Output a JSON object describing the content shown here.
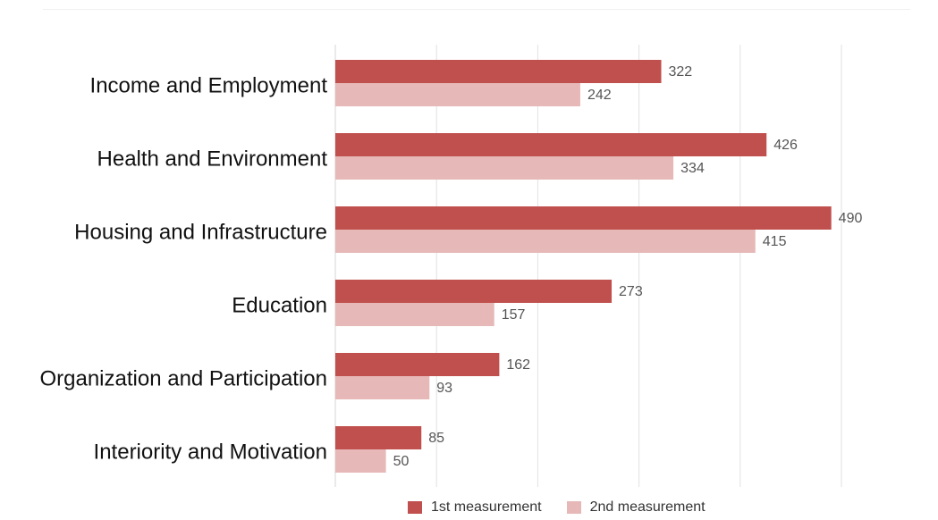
{
  "chart_data": {
    "type": "bar",
    "orientation": "horizontal",
    "title": "",
    "xlabel": "",
    "ylabel": "",
    "categories": [
      "Income and Employment",
      "Health and Environment",
      "Housing and Infrastructure",
      "Education",
      "Organization and Participation",
      "Interiority and Motivation"
    ],
    "series": [
      {
        "name": "1st measurement",
        "color": "#c0504d",
        "values": [
          322,
          426,
          490,
          273,
          162,
          85
        ]
      },
      {
        "name": "2nd measurement",
        "color": "#e6b9b8",
        "values": [
          242,
          334,
          415,
          157,
          93,
          50
        ]
      }
    ],
    "xlim": [
      0,
      500
    ],
    "grid": true,
    "legend_position": "bottom"
  }
}
